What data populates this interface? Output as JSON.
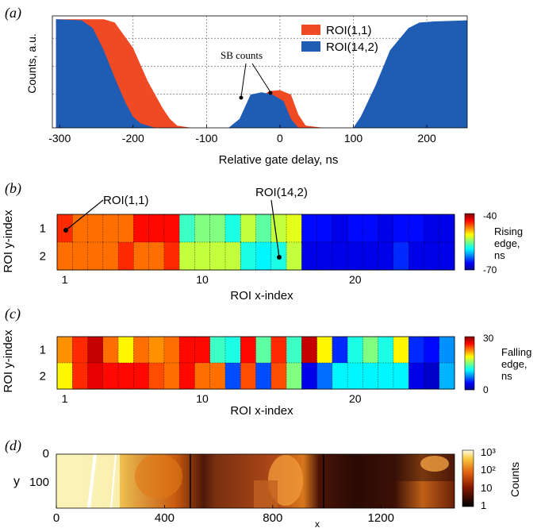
{
  "chart_data": [
    {
      "panel": "(a)",
      "type": "area",
      "xlabel": "Relative gate delay, ns",
      "ylabel": "Counts, a.u.",
      "xlim": [
        -310,
        255
      ],
      "xticks": [
        -300,
        -200,
        -100,
        0,
        100,
        200
      ],
      "grid": true,
      "legend_position": "top-right",
      "annotation": "SB counts",
      "series": [
        {
          "name": "ROI(1,1)",
          "color": "#f04a24",
          "x": [
            -305,
            -240,
            -225,
            -200,
            -180,
            -160,
            -150,
            -140,
            -120,
            -100,
            -60,
            -45,
            -30,
            -15,
            0,
            15,
            25,
            35,
            60,
            100,
            140,
            160,
            180,
            200,
            210,
            255
          ],
          "y": [
            0.98,
            0.98,
            0.95,
            0.72,
            0.42,
            0.18,
            0.08,
            0.02,
            0,
            0,
            0,
            0.08,
            0.26,
            0.33,
            0.34,
            0.3,
            0.12,
            0.02,
            0,
            0,
            0,
            0.25,
            0.6,
            0.88,
            0.95,
            0.97
          ]
        },
        {
          "name": "ROI(14,2)",
          "color": "#1f5cb4",
          "x": [
            -305,
            -270,
            -255,
            -240,
            -225,
            -210,
            -200,
            -190,
            -170,
            -150,
            -100,
            -70,
            -55,
            -40,
            -25,
            -10,
            5,
            15,
            25,
            40,
            60,
            100,
            110,
            130,
            150,
            175,
            190,
            210,
            255
          ],
          "y": [
            0.98,
            0.97,
            0.9,
            0.7,
            0.45,
            0.22,
            0.1,
            0.04,
            0,
            0,
            0,
            0,
            0.08,
            0.3,
            0.32,
            0.3,
            0.24,
            0.08,
            0,
            0,
            0,
            0,
            0.1,
            0.38,
            0.7,
            0.9,
            0.95,
            0.96,
            0.97
          ]
        }
      ]
    },
    {
      "panel": "(b)",
      "type": "heatmap",
      "xlabel": "ROI x-index",
      "ylabel": "ROI y-index",
      "xticks": [
        1,
        10,
        20
      ],
      "yticks": [
        1,
        2
      ],
      "annotations": [
        "ROI(1,1)",
        "ROI(14,2)"
      ],
      "colorbar": {
        "label": "Rising edge, ns",
        "min": -70,
        "max": -40,
        "ticks": [
          -40,
          -70
        ]
      },
      "rows": [
        [
          -45,
          -47,
          -47,
          -47,
          -47,
          -44,
          -44,
          -44,
          -57,
          -55,
          -55,
          -58,
          -53,
          -56,
          -53,
          -52,
          -66,
          -66,
          -67,
          -66,
          -66,
          -67,
          -66,
          -66,
          -67,
          -67
        ],
        [
          -47,
          -47,
          -47,
          -47,
          -45,
          -47,
          -47,
          -45,
          -53,
          -53,
          -53,
          -53,
          -58,
          -59,
          -58,
          -53,
          -67,
          -67,
          -67,
          -67,
          -67,
          -67,
          -65,
          -67,
          -67,
          -67
        ]
      ]
    },
    {
      "panel": "(c)",
      "type": "heatmap",
      "xlabel": "ROI x-index",
      "ylabel": "ROI y-index",
      "xticks": [
        1,
        10,
        20
      ],
      "yticks": [
        1,
        2
      ],
      "colorbar": {
        "label": "Falling edge, ns",
        "min": 0,
        "max": 30,
        "ticks": [
          30,
          0
        ]
      },
      "rows": [
        [
          22,
          25,
          28,
          23,
          19,
          23,
          22,
          23,
          26,
          26,
          13,
          12,
          26,
          14,
          25,
          13,
          28,
          19,
          5,
          12,
          15,
          12,
          19,
          5,
          4,
          8
        ],
        [
          19,
          25,
          27,
          26,
          26,
          26,
          24,
          23,
          26,
          23,
          23,
          6,
          24,
          6,
          24,
          15,
          3,
          7,
          11,
          11,
          11,
          11,
          11,
          3,
          2,
          9
        ]
      ]
    },
    {
      "panel": "(d)",
      "type": "heatmap",
      "xlabel": "x",
      "ylabel": "y",
      "xticks": [
        0,
        400,
        800,
        1200
      ],
      "yticks": [
        0,
        100
      ],
      "colorbar": {
        "label": "Counts",
        "scale": "log",
        "ticks": [
          "10³",
          "10²",
          "10",
          "1"
        ]
      }
    }
  ]
}
